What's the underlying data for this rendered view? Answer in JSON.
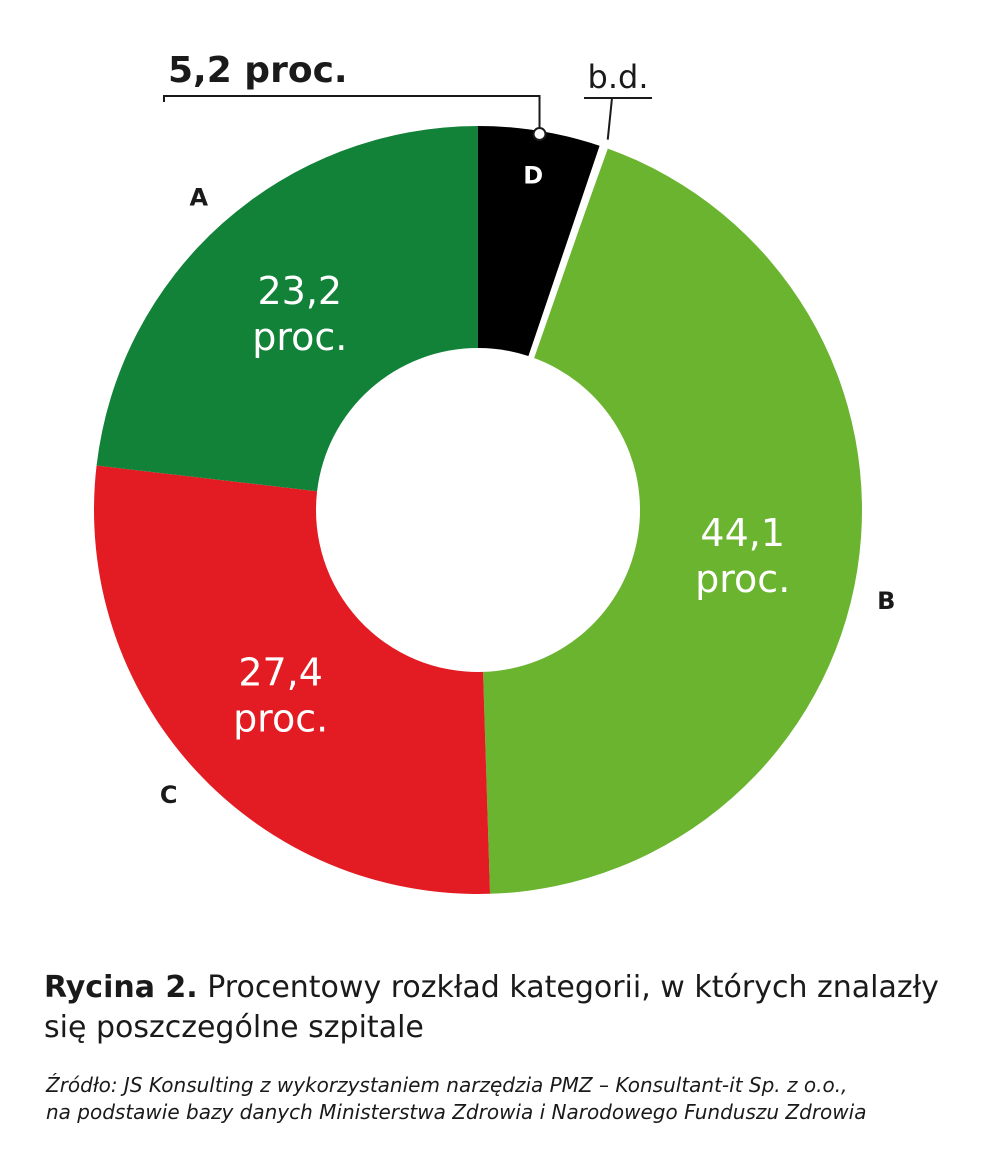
{
  "chart_data": {
    "type": "pie",
    "variant": "donut",
    "slices": [
      {
        "category": "D",
        "value": 5.2,
        "label_line1": "5,2 proc.",
        "color": "#000000"
      },
      {
        "category": "b.d.",
        "value": 0.3,
        "label_line1": "b.d.",
        "color": "#ffffff"
      },
      {
        "category": "B",
        "value": 44.1,
        "label_line1": "44,1",
        "label_line2": "proc.",
        "color": "#6ab430"
      },
      {
        "category": "C",
        "value": 27.4,
        "label_line1": "27,4",
        "label_line2": "proc.",
        "color": "#e31c23"
      },
      {
        "category": "A",
        "value": 23.2,
        "label_line1": "23,2",
        "label_line2": "proc.",
        "color": "#118238"
      }
    ]
  },
  "caption": {
    "prefix": "Rycina 2.",
    "text": " Procentowy rozkład kategorii, w których znalazły się poszczególne szpitale"
  },
  "source": {
    "line1": "Źródło: JS Konsulting z wykorzystaniem narzędzia PMZ – Konsultant-it Sp. z o.o.,",
    "line2": "na podstawie bazy danych Ministerstwa Zdrowia i Narodowego Funduszu Zdrowia"
  }
}
